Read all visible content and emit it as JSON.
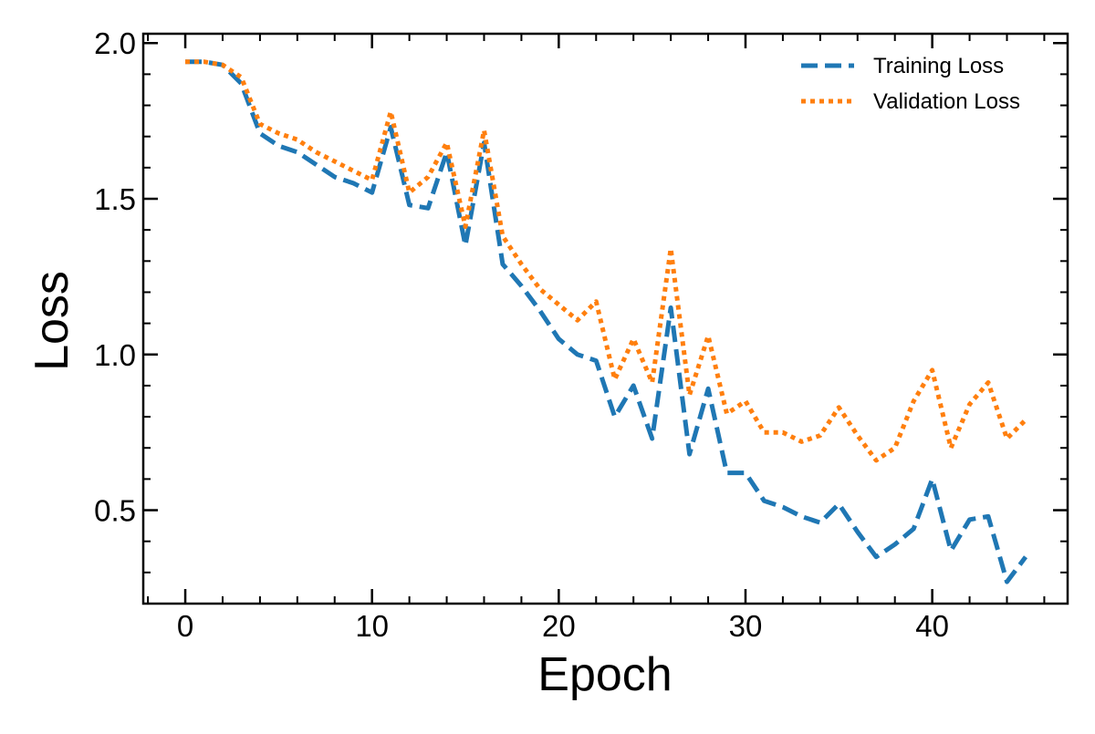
{
  "chart_data": {
    "type": "line",
    "title": "",
    "xlabel": "Epoch",
    "ylabel": "Loss",
    "xlim": [
      -2.25,
      47.25
    ],
    "ylim": [
      0.2,
      2.03
    ],
    "xticks": [
      0,
      10,
      20,
      30,
      40
    ],
    "yticks": [
      0.5,
      1.0,
      1.5,
      2.0
    ],
    "xtick_labels": [
      "0",
      "10",
      "20",
      "30",
      "40"
    ],
    "ytick_labels": [
      "0.5",
      "1.0",
      "1.5",
      "2.0"
    ],
    "x_minor_step": 2,
    "y_minor_step": 0.1,
    "grid": false,
    "legend_position": "top-right",
    "x": [
      0,
      1,
      2,
      3,
      4,
      5,
      6,
      7,
      8,
      9,
      10,
      11,
      12,
      13,
      14,
      15,
      16,
      17,
      18,
      19,
      20,
      21,
      22,
      23,
      24,
      25,
      26,
      27,
      28,
      29,
      30,
      31,
      32,
      33,
      34,
      35,
      36,
      37,
      38,
      39,
      40,
      41,
      42,
      43,
      44,
      45
    ],
    "series": [
      {
        "name": "Training Loss",
        "color": "#1f77b4",
        "style": "dashed",
        "values": [
          1.94,
          1.94,
          1.93,
          1.87,
          1.71,
          1.67,
          1.65,
          1.61,
          1.57,
          1.55,
          1.52,
          1.73,
          1.48,
          1.47,
          1.65,
          1.35,
          1.68,
          1.29,
          1.22,
          1.14,
          1.05,
          1.0,
          0.98,
          0.8,
          0.9,
          0.73,
          1.15,
          0.68,
          0.89,
          0.62,
          0.62,
          0.53,
          0.51,
          0.48,
          0.46,
          0.52,
          0.43,
          0.35,
          0.39,
          0.44,
          0.6,
          0.37,
          0.47,
          0.48,
          0.27,
          0.35
        ]
      },
      {
        "name": "Validation Loss",
        "color": "#ff7f0e",
        "style": "dotted",
        "values": [
          1.94,
          1.94,
          1.93,
          1.89,
          1.74,
          1.71,
          1.69,
          1.65,
          1.62,
          1.59,
          1.56,
          1.78,
          1.52,
          1.57,
          1.68,
          1.41,
          1.72,
          1.38,
          1.29,
          1.21,
          1.16,
          1.11,
          1.17,
          0.92,
          1.05,
          0.91,
          1.34,
          0.87,
          1.06,
          0.81,
          0.85,
          0.75,
          0.75,
          0.72,
          0.74,
          0.83,
          0.74,
          0.66,
          0.7,
          0.85,
          0.95,
          0.7,
          0.84,
          0.91,
          0.73,
          0.79
        ]
      }
    ]
  }
}
